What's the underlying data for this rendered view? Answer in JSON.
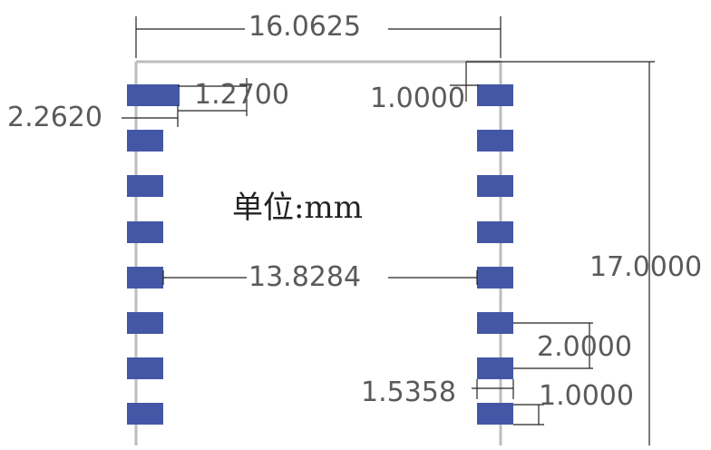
{
  "dimensions": {
    "total_width": "16.0625",
    "pad_length": "1.2700",
    "edge_offset": "2.2620",
    "top_offset": "1.0000",
    "unit_label": "单位:mm",
    "inner_span": "13.8284",
    "total_height": "17.0000",
    "pitch": "2.0000",
    "pad_extent": "1.5358",
    "pad_width": "1.0000"
  },
  "colors": {
    "pad": "#4457a6",
    "outline": "#bdbdbd",
    "dimension_line": "#222222",
    "label_text": "#5a5a5a"
  },
  "pads_per_side": 8
}
